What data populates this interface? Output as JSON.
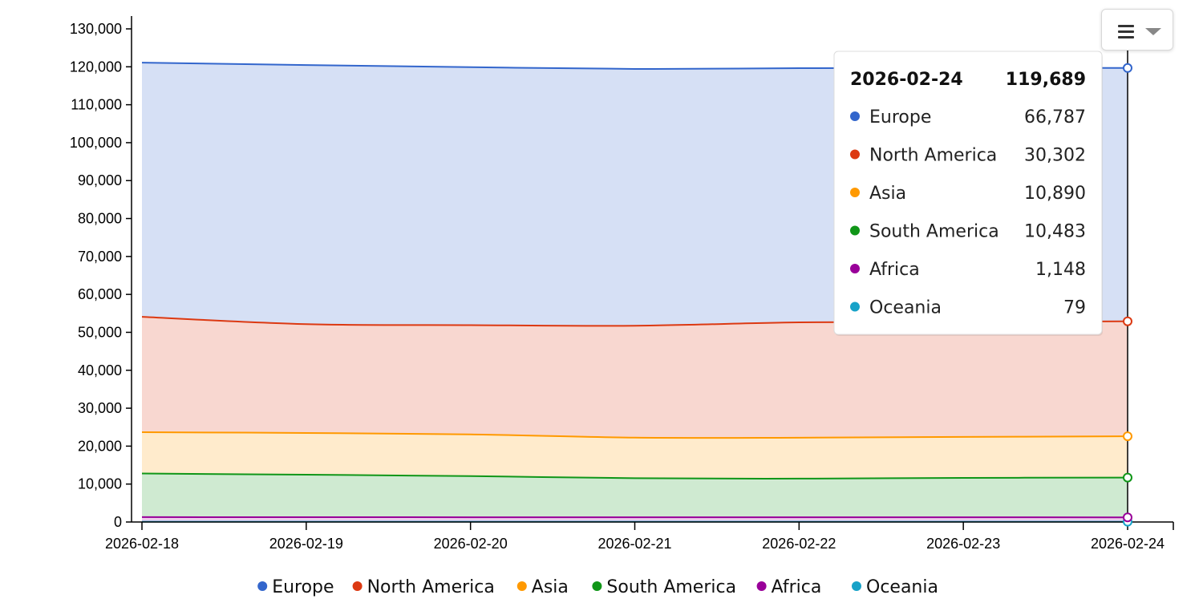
{
  "chart_data": {
    "type": "area",
    "stacked": true,
    "x": [
      "2026-02-18",
      "2026-02-19",
      "2026-02-20",
      "2026-02-21",
      "2026-02-22",
      "2026-02-23",
      "2026-02-24"
    ],
    "series": [
      {
        "name": "Oceania",
        "color": "#17a2c8",
        "values": [
          85,
          84,
          83,
          81,
          80,
          80,
          79
        ]
      },
      {
        "name": "Africa",
        "color": "#990099",
        "values": [
          1200,
          1180,
          1170,
          1160,
          1150,
          1150,
          1148
        ]
      },
      {
        "name": "South America",
        "color": "#109618",
        "values": [
          11500,
          11200,
          10850,
          10300,
          10200,
          10400,
          10483
        ]
      },
      {
        "name": "Asia",
        "color": "#ff9900",
        "values": [
          10900,
          11000,
          11000,
          10700,
          10800,
          10800,
          10890
        ]
      },
      {
        "name": "North America",
        "color": "#dc3912",
        "values": [
          30400,
          28700,
          28800,
          29500,
          30400,
          30300,
          30302
        ]
      },
      {
        "name": "Europe",
        "color": "#3366cc",
        "values": [
          67000,
          68300,
          68000,
          67700,
          67000,
          67000,
          66787
        ]
      }
    ],
    "ylim": [
      0,
      130000
    ],
    "y_ticks": [
      0,
      10000,
      20000,
      30000,
      40000,
      50000,
      60000,
      70000,
      80000,
      90000,
      100000,
      110000,
      120000,
      130000
    ],
    "y_tick_labels": [
      "0",
      "10,000",
      "20,000",
      "30,000",
      "40,000",
      "50,000",
      "60,000",
      "70,000",
      "80,000",
      "90,000",
      "100,000",
      "110,000",
      "120,000",
      "130,000"
    ],
    "legend": {
      "placement": "bottom",
      "entries": [
        "Europe",
        "North America",
        "Asia",
        "South America",
        "Africa",
        "Oceania"
      ]
    },
    "tooltip": {
      "date": "2026-02-24",
      "total": "119,689",
      "rows": [
        {
          "name": "Europe",
          "value": "66,787",
          "color": "#3366cc"
        },
        {
          "name": "North America",
          "value": "30,302",
          "color": "#dc3912"
        },
        {
          "name": "Asia",
          "value": "10,890",
          "color": "#ff9900"
        },
        {
          "name": "South America",
          "value": "10,483",
          "color": "#109618"
        },
        {
          "name": "Africa",
          "value": "1,148",
          "color": "#990099"
        },
        {
          "name": "Oceania",
          "value": "79",
          "color": "#17a2c8"
        }
      ]
    },
    "grid": false
  },
  "menu": {
    "icon": "hamburger-menu-icon"
  }
}
